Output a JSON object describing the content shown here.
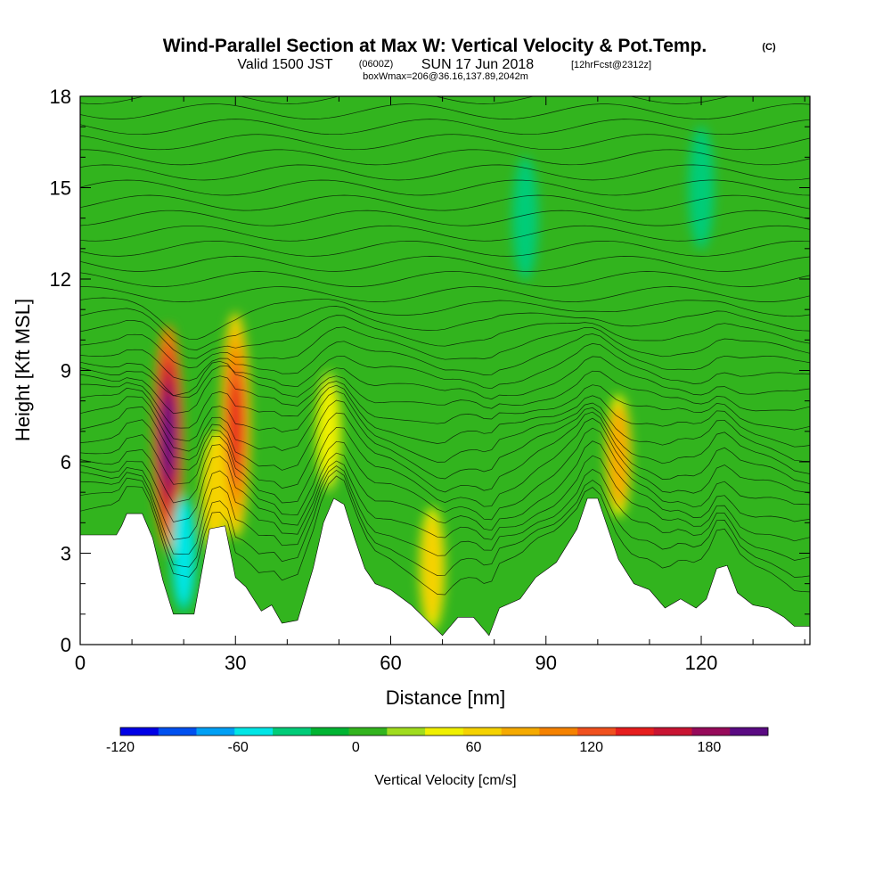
{
  "chart_data": {
    "type": "heatmap",
    "title": "Wind-Parallel Section at Max W: Vertical Velocity & Pot.Temp.",
    "title_mark": "(C)",
    "subtitle_valid": "Valid 1500 JST",
    "subtitle_z": "(0600Z)",
    "subtitle_date": "SUN 17 Jun 2018",
    "subtitle_fcst": "[12hrFcst@2312z]",
    "subtitle_box": "boxWmax=206@36.16,137.89,2042m",
    "xlabel": "Distance [nm]",
    "ylabel": "Height [Kft MSL]",
    "xlim": [
      0,
      141
    ],
    "ylim": [
      0,
      18
    ],
    "x_ticks": [
      0,
      30,
      60,
      90,
      120
    ],
    "x_tick_labels": [
      "0",
      "30",
      "60",
      "90",
      "120"
    ],
    "y_ticks": [
      0,
      3,
      6,
      9,
      12,
      15,
      18
    ],
    "y_tick_labels": [
      "0",
      "3",
      "6",
      "9",
      "12",
      "15",
      "18"
    ],
    "colorbar": {
      "title": "Vertical Velocity [cm/s]",
      "min": -120,
      "max": 210,
      "labels": [
        "-120",
        "-60",
        "0",
        "60",
        "120",
        "180"
      ],
      "label_values": [
        -120,
        -60,
        0,
        60,
        120,
        180
      ],
      "colors": [
        "#0000e6",
        "#0050f0",
        "#00a0f5",
        "#00e6e6",
        "#00cc78",
        "#00b432",
        "#32b41e",
        "#a0dc1e",
        "#f0f000",
        "#f5d200",
        "#f5aa00",
        "#f58200",
        "#f0501e",
        "#e61e1e",
        "#c81432",
        "#960a5a",
        "#5a0a82"
      ]
    },
    "terrain_profile": [
      [
        0,
        3.6
      ],
      [
        7,
        3.6
      ],
      [
        8,
        3.9
      ],
      [
        9,
        4.3
      ],
      [
        12,
        4.3
      ],
      [
        14,
        3.5
      ],
      [
        16,
        2.1
      ],
      [
        18,
        1.0
      ],
      [
        22,
        1.0
      ],
      [
        25,
        3.8
      ],
      [
        28,
        3.9
      ],
      [
        30,
        2.2
      ],
      [
        32,
        1.9
      ],
      [
        35,
        1.1
      ],
      [
        37,
        1.3
      ],
      [
        39,
        0.7
      ],
      [
        42,
        0.8
      ],
      [
        45,
        2.5
      ],
      [
        47,
        4.0
      ],
      [
        49,
        4.8
      ],
      [
        51,
        4.6
      ],
      [
        53,
        3.5
      ],
      [
        55,
        2.5
      ],
      [
        57,
        2.0
      ],
      [
        60,
        1.8
      ],
      [
        64,
        1.3
      ],
      [
        67,
        0.8
      ],
      [
        70,
        0.3
      ],
      [
        73,
        0.9
      ],
      [
        76,
        0.9
      ],
      [
        79,
        0.3
      ],
      [
        81,
        1.2
      ],
      [
        85,
        1.5
      ],
      [
        88,
        2.2
      ],
      [
        92,
        2.7
      ],
      [
        96,
        3.8
      ],
      [
        98,
        4.8
      ],
      [
        100,
        4.8
      ],
      [
        102,
        3.8
      ],
      [
        104,
        2.8
      ],
      [
        107,
        2.0
      ],
      [
        110,
        1.8
      ],
      [
        113,
        1.2
      ],
      [
        116,
        1.5
      ],
      [
        119,
        1.2
      ],
      [
        121,
        1.5
      ],
      [
        123,
        2.5
      ],
      [
        125,
        2.6
      ],
      [
        127,
        1.7
      ],
      [
        130,
        1.3
      ],
      [
        133,
        1.2
      ],
      [
        136,
        0.9
      ],
      [
        138,
        0.6
      ],
      [
        141,
        0.6
      ]
    ],
    "velocity_features": [
      {
        "x": 17,
        "y": 6.8,
        "value": 206
      },
      {
        "x": 30,
        "y": 7.2,
        "value": 150
      },
      {
        "x": 20,
        "y": 3.0,
        "value": -60
      },
      {
        "x": 104,
        "y": 6.2,
        "value": 80
      },
      {
        "x": 68,
        "y": 2.5,
        "value": 60
      },
      {
        "x": 48,
        "y": 7.0,
        "value": 50
      },
      {
        "x": 26,
        "y": 5.0,
        "value": 70
      },
      {
        "x": 86,
        "y": 14.0,
        "value": -40
      },
      {
        "x": 120,
        "y": 15.0,
        "value": -40
      }
    ]
  }
}
